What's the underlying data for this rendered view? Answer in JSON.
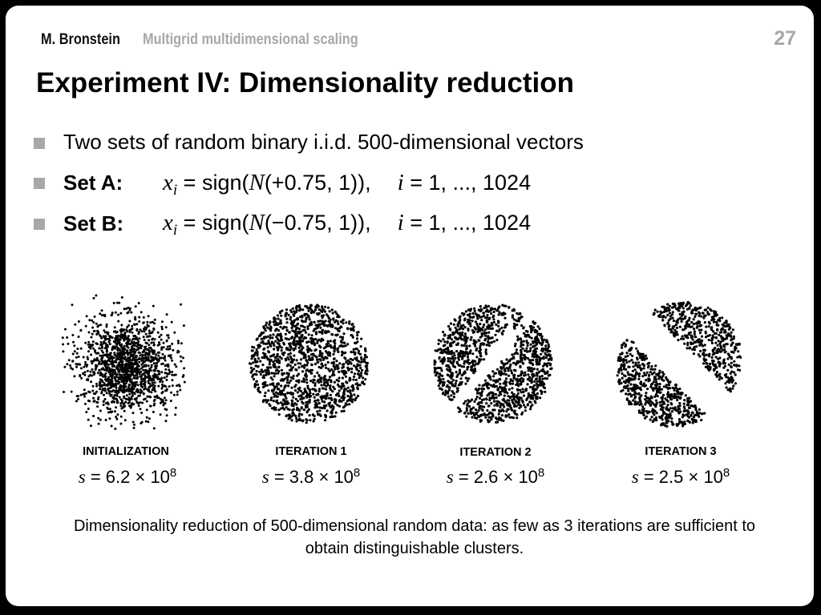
{
  "header": {
    "author": "M. Bronstein",
    "subtitle": "Multigrid multidimensional scaling",
    "page_number": "27"
  },
  "title": "Experiment IV: Dimensionality reduction",
  "bullets": [
    {
      "text": "Two sets of random binary i.i.d. 500-dimensional vectors"
    },
    {
      "text": "Set A:",
      "formula": {
        "lhs_var": "x",
        "lhs_sub": "i",
        "func": "= sign(",
        "dist": "N",
        "args": "(+0.75, 1)),",
        "index_var": "i",
        "index_range": "= 1, ..., 1024"
      }
    },
    {
      "text": "Set B:",
      "formula": {
        "lhs_var": "x",
        "lhs_sub": "i",
        "func": "= sign(",
        "dist": "N",
        "args": "(−0.75, 1)),",
        "index_var": "i",
        "index_range": "= 1, ..., 1024"
      }
    }
  ],
  "panels": [
    {
      "label": "INITIALIZATION",
      "s_mantissa": "6.2",
      "s_exp": "8",
      "pattern": "gaussian"
    },
    {
      "label": "ITERATION 1",
      "s_mantissa": "3.8",
      "s_exp": "8",
      "pattern": "disk"
    },
    {
      "label": "ITERATION 2",
      "s_mantissa": "2.6",
      "s_exp": "8",
      "pattern": "partial-split"
    },
    {
      "label": "ITERATION 3",
      "s_mantissa": "2.5",
      "s_exp": "8",
      "pattern": "split"
    }
  ],
  "s_symbol": "s",
  "s_times": "= ",
  "s_mult": " × 10",
  "caption": "Dimensionality reduction of 500-dimensional random data: as few as 3 iterations are sufficient to obtain distinguishable clusters.",
  "colors": {
    "accent_gray": "#a8a8a8",
    "text": "#000000",
    "frame": "#000000"
  }
}
